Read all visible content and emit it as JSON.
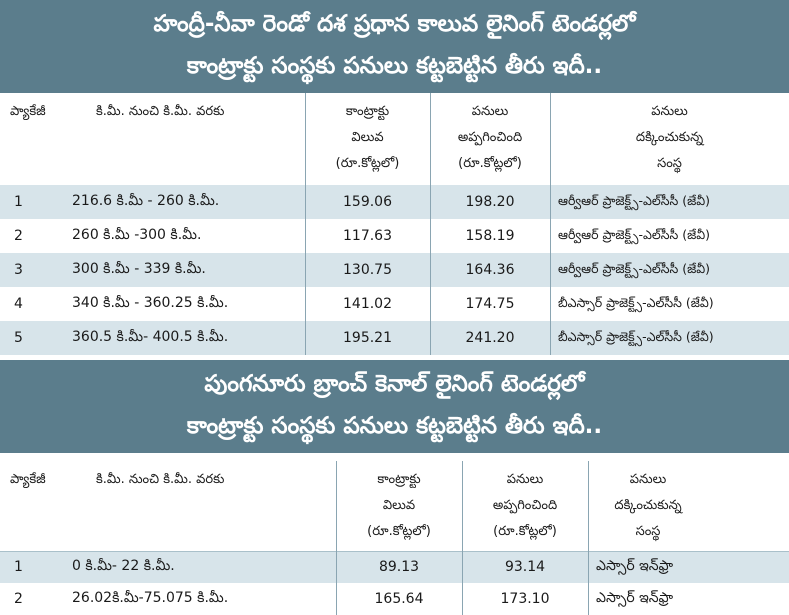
{
  "table1": {
    "title_line1": "హంద్రీ-నీవా రెండో దశ ప్రధాన కాలువ లైనింగ్ టెండర్లలో",
    "title_line2": "కాంట్రాక్టు సంస్థకు పనులు కట్టబెట్టిన తీరు ఇదీ..",
    "headers": {
      "package": "ప్యాకేజీ",
      "range": "కి.మీ. నుంచి కి.మీ. వరకు",
      "value_l1": "కాంట్రాక్టు",
      "value_l2": "విలువ",
      "value_l3": "(రూ.కోట్లలో)",
      "assigned_l1": "పనులు",
      "assigned_l2": "అప్పగించింది",
      "assigned_l3": "(రూ.కోట్లలో)",
      "firm_l1": "పనులు",
      "firm_l2": "దక్కించుకున్న",
      "firm_l3": "సంస్థ"
    },
    "rows": [
      {
        "pkg": "1",
        "range": "216.6 కి.మీ - 260 కి.మీ.",
        "value": "159.06",
        "assigned": "198.20",
        "firm": "ఆర్వీఆర్ ప్రాజెక్ట్స్-ఎల్‌సీసీ (జేవీ)"
      },
      {
        "pkg": "2",
        "range": "260 కి.మీ -300 కి.మీ.",
        "value": "117.63",
        "assigned": "158.19",
        "firm": "ఆర్వీఆర్ ప్రాజెక్ట్స్-ఎల్‌సీసీ (జేవీ)"
      },
      {
        "pkg": "3",
        "range": "300 కి.మీ - 339 కి.మీ.",
        "value": "130.75",
        "assigned": "164.36",
        "firm": "ఆర్వీఆర్ ప్రాజెక్ట్స్-ఎల్‌సీసీ (జేవీ)"
      },
      {
        "pkg": "4",
        "range": "340 కి.మీ - 360.25 కి.మీ.",
        "value": "141.02",
        "assigned": "174.75",
        "firm": "బీఎస్సార్ ప్రాజెక్ట్స్-ఎల్‌సీసీ (జేవీ)"
      },
      {
        "pkg": "5",
        "range": "360.5 కి.మీ- 400.5 కి.మీ.",
        "value": "195.21",
        "assigned": "241.20",
        "firm": "బీఎస్సార్ ప్రాజెక్ట్స్-ఎల్‌సీసీ (జేవీ)"
      }
    ]
  },
  "table2": {
    "title_line1": "పుంగనూరు బ్రాంచ్ కెనాల్ లైనింగ్ టెండర్లలో",
    "title_line2": "కాంట్రాక్టు సంస్థకు పనులు కట్టబెట్టిన తీరు ఇదీ..",
    "headers": {
      "package": "ప్యాకేజీ",
      "range": "కి.మీ. నుంచి కి.మీ. వరకు",
      "value_l1": "కాంట్రాక్టు",
      "value_l2": "విలువ",
      "value_l3": "(రూ.కోట్లలో)",
      "assigned_l1": "పనులు",
      "assigned_l2": "అప్పగించింది",
      "assigned_l3": "(రూ.కోట్లలో)",
      "firm_l1": "పనులు",
      "firm_l2": "దక్కించుకున్న",
      "firm_l3": "సంస్థ"
    },
    "rows": [
      {
        "pkg": "1",
        "range": "0 కి.మీ- 22 కి.మీ.",
        "value": "89.13",
        "assigned": "93.14",
        "firm": "ఎస్సార్ ఇన్‌ఫ్రా"
      },
      {
        "pkg": "2",
        "range": "26.02కి.మీ-75.075 కి.మీ.",
        "value": "165.64",
        "assigned": "173.10",
        "firm": "ఎస్సార్ ఇన్‌ఫ్రా"
      }
    ]
  }
}
